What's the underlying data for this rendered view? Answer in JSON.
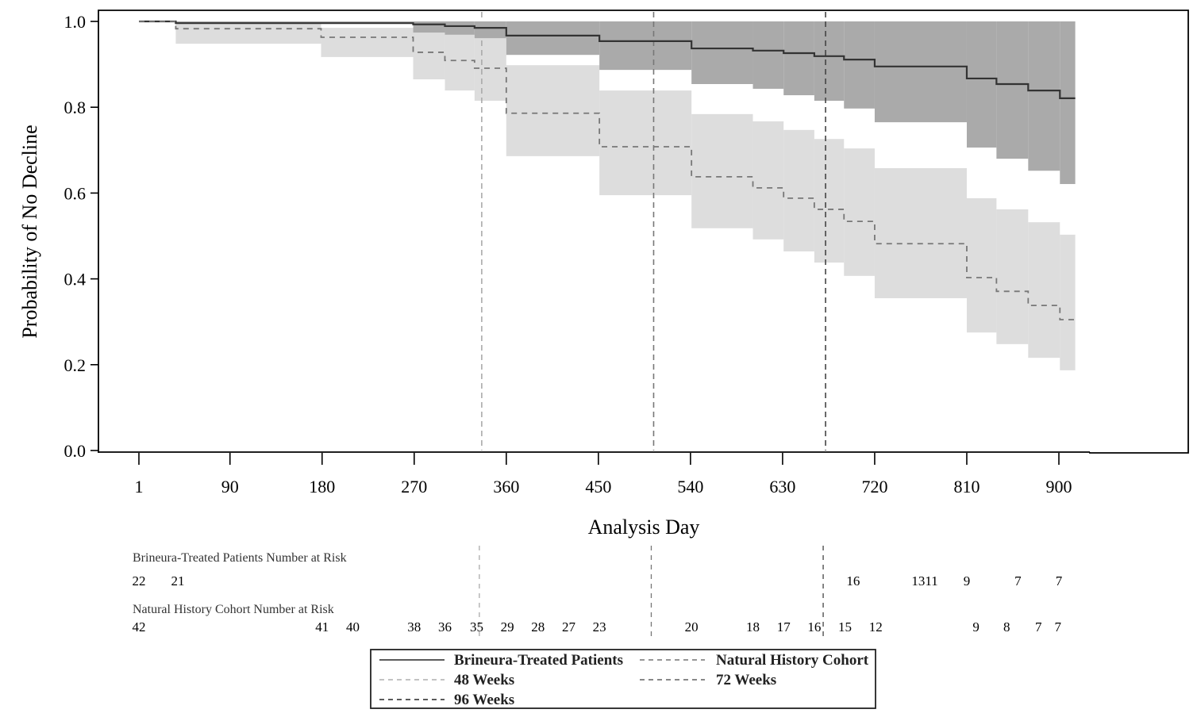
{
  "chart_data": {
    "type": "line",
    "subtype": "kaplan-meier",
    "title": "",
    "xlabel": "Analysis Day",
    "ylabel": "Probability of No Decline",
    "xlim": [
      -40,
      1195
    ],
    "ylim": [
      0,
      1.0
    ],
    "x_ticks": [
      1,
      90,
      180,
      270,
      360,
      450,
      540,
      630,
      720,
      810,
      900
    ],
    "x_tick_labels": [
      "1",
      "90",
      "180",
      "270",
      "360",
      "450",
      "540",
      "630",
      "720",
      "810",
      "900"
    ],
    "y_ticks": [
      0.0,
      0.2,
      0.4,
      0.6,
      0.8,
      1.0
    ],
    "y_tick_labels": [
      "0.0",
      "0.2",
      "0.4",
      "0.6",
      "0.8",
      "1.0"
    ],
    "grid": false,
    "legend_position": "bottom-center",
    "series": [
      {
        "name": "Brineura-Treated Patients",
        "style": "solid",
        "color": "#333333",
        "ci_color": "#aaaaaa",
        "steps": [
          {
            "x": 1,
            "y": 1.0,
            "lo": 1.0,
            "hi": 1.0
          },
          {
            "x": 37,
            "y": 0.996,
            "lo": 0.996,
            "hi": 1.0
          },
          {
            "x": 269,
            "y": 0.993,
            "lo": 0.974,
            "hi": 1.0
          },
          {
            "x": 300,
            "y": 0.989,
            "lo": 0.969,
            "hi": 1.0
          },
          {
            "x": 329,
            "y": 0.985,
            "lo": 0.961,
            "hi": 1.0
          },
          {
            "x": 360,
            "y": 0.967,
            "lo": 0.922,
            "hi": 1.0
          },
          {
            "x": 451,
            "y": 0.954,
            "lo": 0.887,
            "hi": 1.0
          },
          {
            "x": 541,
            "y": 0.937,
            "lo": 0.854,
            "hi": 1.0
          },
          {
            "x": 601,
            "y": 0.932,
            "lo": 0.843,
            "hi": 1.0
          },
          {
            "x": 631,
            "y": 0.926,
            "lo": 0.828,
            "hi": 1.0
          },
          {
            "x": 661,
            "y": 0.919,
            "lo": 0.815,
            "hi": 1.0
          },
          {
            "x": 690,
            "y": 0.911,
            "lo": 0.797,
            "hi": 1.0
          },
          {
            "x": 720,
            "y": 0.895,
            "lo": 0.765,
            "hi": 1.0
          },
          {
            "x": 810,
            "y": 0.867,
            "lo": 0.706,
            "hi": 1.0
          },
          {
            "x": 839,
            "y": 0.854,
            "lo": 0.68,
            "hi": 1.0
          },
          {
            "x": 870,
            "y": 0.839,
            "lo": 0.652,
            "hi": 1.0
          },
          {
            "x": 901,
            "y": 0.821,
            "lo": 0.621,
            "hi": 1.0
          }
        ],
        "x_end": 916
      },
      {
        "name": "Natural History Cohort",
        "style": "dashed",
        "color": "#777777",
        "ci_color": "#dddddd",
        "steps": [
          {
            "x": 1,
            "y": 1.0,
            "lo": 1.0,
            "hi": 1.0
          },
          {
            "x": 37,
            "y": 0.983,
            "lo": 0.948,
            "hi": 1.0
          },
          {
            "x": 179,
            "y": 0.963,
            "lo": 0.917,
            "hi": 0.985
          },
          {
            "x": 269,
            "y": 0.928,
            "lo": 0.865,
            "hi": 0.98
          },
          {
            "x": 300,
            "y": 0.909,
            "lo": 0.839,
            "hi": 0.974
          },
          {
            "x": 329,
            "y": 0.891,
            "lo": 0.815,
            "hi": 0.963
          },
          {
            "x": 360,
            "y": 0.786,
            "lo": 0.686,
            "hi": 0.898
          },
          {
            "x": 451,
            "y": 0.708,
            "lo": 0.595,
            "hi": 0.839
          },
          {
            "x": 541,
            "y": 0.638,
            "lo": 0.518,
            "hi": 0.784
          },
          {
            "x": 601,
            "y": 0.612,
            "lo": 0.492,
            "hi": 0.767
          },
          {
            "x": 631,
            "y": 0.588,
            "lo": 0.464,
            "hi": 0.747
          },
          {
            "x": 661,
            "y": 0.562,
            "lo": 0.438,
            "hi": 0.726
          },
          {
            "x": 690,
            "y": 0.534,
            "lo": 0.407,
            "hi": 0.704
          },
          {
            "x": 720,
            "y": 0.482,
            "lo": 0.355,
            "hi": 0.658
          },
          {
            "x": 810,
            "y": 0.403,
            "lo": 0.275,
            "hi": 0.588
          },
          {
            "x": 839,
            "y": 0.371,
            "lo": 0.248,
            "hi": 0.562
          },
          {
            "x": 870,
            "y": 0.338,
            "lo": 0.216,
            "hi": 0.532
          },
          {
            "x": 901,
            "y": 0.305,
            "lo": 0.187,
            "hi": 0.503
          }
        ],
        "x_end": 916
      }
    ],
    "reference_lines": [
      {
        "name": "48 Weeks",
        "x": 336,
        "color": "#aaaaaa"
      },
      {
        "name": "72 Weeks",
        "x": 504,
        "color": "#777777"
      },
      {
        "name": "96 Weeks",
        "x": 672,
        "color": "#444444"
      }
    ],
    "number_at_risk": [
      {
        "label": "Brineura-Treated Patients Number at Risk",
        "entries": [
          {
            "x": 1,
            "n": "22"
          },
          {
            "x": 39,
            "n": "21"
          },
          {
            "x": 699,
            "n": "16"
          },
          {
            "x": 769,
            "n": "1311"
          },
          {
            "x": 810,
            "n": "9"
          },
          {
            "x": 860,
            "n": "7"
          },
          {
            "x": 900,
            "n": "7"
          }
        ]
      },
      {
        "label": "Natural History Cohort Number at Risk",
        "entries": [
          {
            "x": 1,
            "n": "42"
          },
          {
            "x": 180,
            "n": "41"
          },
          {
            "x": 210,
            "n": "40"
          },
          {
            "x": 270,
            "n": "38"
          },
          {
            "x": 300,
            "n": "36"
          },
          {
            "x": 331,
            "n": "35"
          },
          {
            "x": 361,
            "n": "29"
          },
          {
            "x": 391,
            "n": "28"
          },
          {
            "x": 421,
            "n": "27"
          },
          {
            "x": 451,
            "n": "23"
          },
          {
            "x": 541,
            "n": "20"
          },
          {
            "x": 601,
            "n": "18"
          },
          {
            "x": 631,
            "n": "17"
          },
          {
            "x": 661,
            "n": "16"
          },
          {
            "x": 691,
            "n": "15"
          },
          {
            "x": 721,
            "n": "12"
          },
          {
            "x": 819,
            "n": "9"
          },
          {
            "x": 849,
            "n": "8"
          },
          {
            "x": 880,
            "n": "7"
          },
          {
            "x": 899,
            "n": "7"
          }
        ]
      }
    ],
    "legend": [
      {
        "label": "Brineura-Treated Patients",
        "style": "solid",
        "color": "#444444"
      },
      {
        "label": "Natural History Cohort",
        "style": "dashed",
        "color": "#888888"
      },
      {
        "label": "48 Weeks",
        "style": "dashed",
        "color": "#bbbbbb"
      },
      {
        "label": "72 Weeks",
        "style": "dashed",
        "color": "#777777"
      },
      {
        "label": "96 Weeks",
        "style": "dashed",
        "color": "#444444"
      }
    ]
  }
}
